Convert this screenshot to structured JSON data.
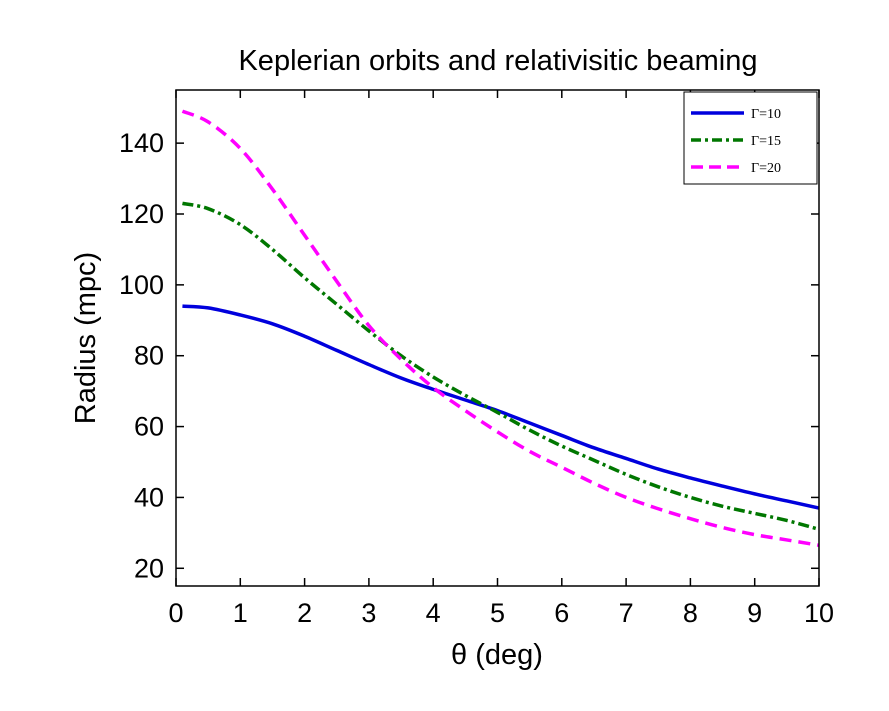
{
  "chart_data": {
    "type": "line",
    "title": "Keplerian orbits and relativisitic beaming",
    "xlabel": "θ (deg)",
    "ylabel": "Radius (mpc)",
    "xlim": [
      0,
      10
    ],
    "ylim": [
      15,
      155
    ],
    "xticks": [
      "0",
      "1",
      "2",
      "3",
      "4",
      "5",
      "6",
      "7",
      "8",
      "9",
      "10"
    ],
    "yticks": [
      "20",
      "40",
      "60",
      "80",
      "100",
      "120",
      "140"
    ],
    "grid": false,
    "legend_position": "top-right",
    "x": [
      0.1,
      0.5,
      1,
      1.5,
      2,
      2.5,
      3,
      3.5,
      4,
      4.5,
      5,
      5.5,
      6,
      6.5,
      7,
      7.5,
      8,
      8.5,
      9,
      9.5,
      10
    ],
    "series": [
      {
        "name": "Γ=10",
        "color": "#0000dd",
        "style": "solid",
        "values": [
          94,
          93.5,
          91.5,
          89,
          85.5,
          81.5,
          77.5,
          73.7,
          70.5,
          67.5,
          64.5,
          61,
          57.5,
          54,
          51,
          48,
          45.5,
          43.2,
          41,
          39,
          37
        ]
      },
      {
        "name": "Γ=15",
        "color": "#007700",
        "style": "dashdot",
        "values": [
          123,
          121.5,
          117,
          110,
          102,
          94.5,
          87,
          80,
          74,
          68.8,
          64,
          59,
          54.5,
          50.5,
          46.5,
          43,
          40,
          37.5,
          35.5,
          33.5,
          31
        ]
      },
      {
        "name": "Γ=20",
        "color": "#ff00ff",
        "style": "dashed",
        "values": [
          149,
          146,
          138.5,
          127,
          114,
          101,
          88.5,
          79,
          71,
          64.5,
          58.5,
          53,
          48.5,
          44,
          40,
          36.8,
          34,
          31.5,
          29.5,
          28,
          26.5
        ]
      }
    ]
  }
}
